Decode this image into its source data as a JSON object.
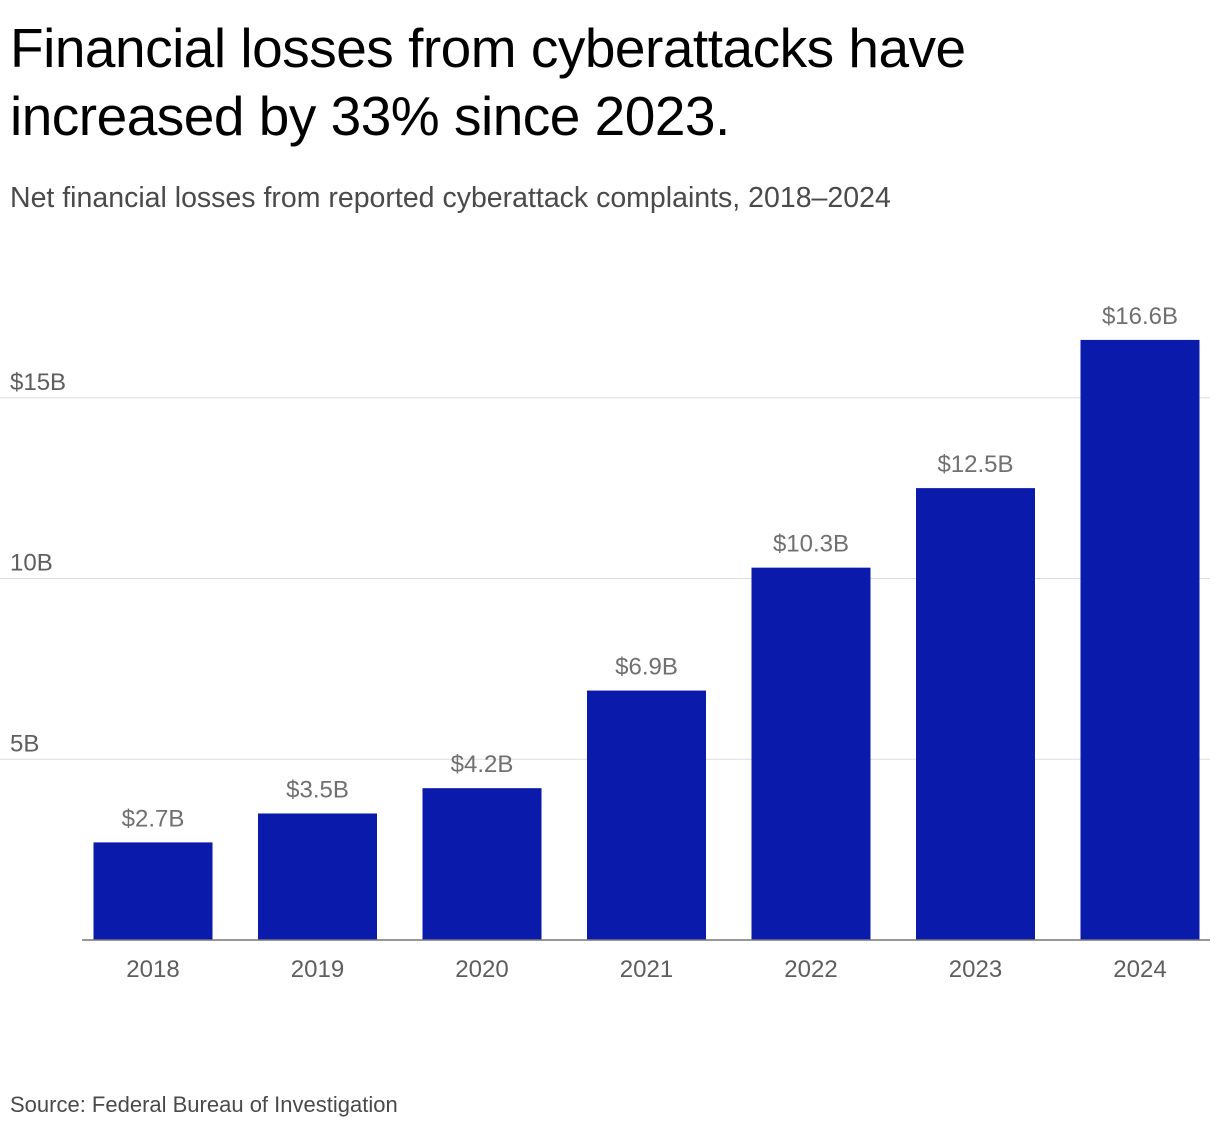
{
  "header": {
    "title": "Financial losses from cyberattacks have increased by 33% since 2023.",
    "subtitle": "Net financial losses from reported cyberattack complaints, 2018–2024"
  },
  "footer": {
    "source": "Source: Federal Bureau of Investigation"
  },
  "colors": {
    "bar": "#0a1aab",
    "grid": "#dddddd",
    "axis": "#777777"
  },
  "chart_data": {
    "type": "bar",
    "title": "Financial losses from cyberattacks have increased by 33% since 2023.",
    "subtitle": "Net financial losses from reported cyberattack complaints, 2018–2024",
    "xlabel": "",
    "ylabel": "",
    "categories": [
      "2018",
      "2019",
      "2020",
      "2021",
      "2022",
      "2023",
      "2024"
    ],
    "values": [
      2.7,
      3.5,
      4.2,
      6.9,
      10.3,
      12.5,
      16.6
    ],
    "value_labels": [
      "$2.7B",
      "$3.5B",
      "$4.2B",
      "$6.9B",
      "$10.3B",
      "$12.5B",
      "$16.6B"
    ],
    "units": "billions of US dollars",
    "ylim": [
      0,
      16.6
    ],
    "yticks": [
      {
        "value": 5,
        "label": "5B"
      },
      {
        "value": 10,
        "label": "10B"
      },
      {
        "value": 15,
        "label": "$15B"
      }
    ],
    "grid": true,
    "legend": "none"
  }
}
